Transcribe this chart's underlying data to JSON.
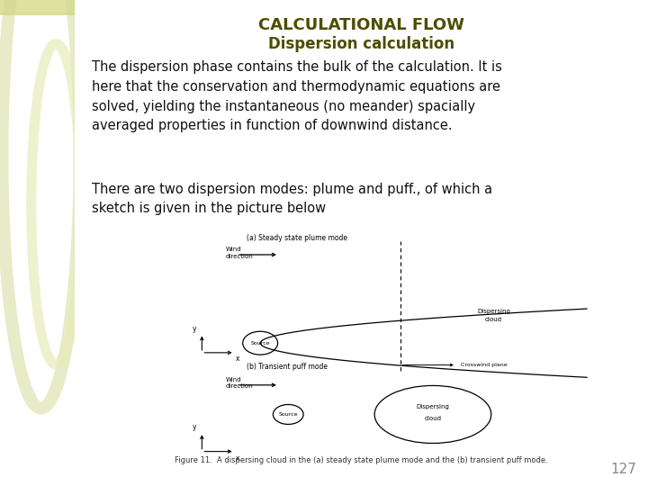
{
  "title1": "CALCULATIONAL FLOW",
  "title2": "Dispersion calculation",
  "title1_color": "#4d4d00",
  "title2_color": "#4d4d00",
  "body_text1": "The dispersion phase contains the bulk of the calculation. It is\nhere that the conservation and thermodynamic equations are\nsolved, yielding the instantaneous (no meander) spacially\naveraged properties in function of downwind distance.",
  "body_text2": "There are two dispersion modes: plume and puff., of which a\nsketch is given in the picture below",
  "sidebar_color": "#eaed9a",
  "background_color": "#ffffff",
  "page_number": "127",
  "fig_caption": "Figure 11.  A dispersing cloud in the (a) steady state plume mode and the (b) transient puff mode."
}
